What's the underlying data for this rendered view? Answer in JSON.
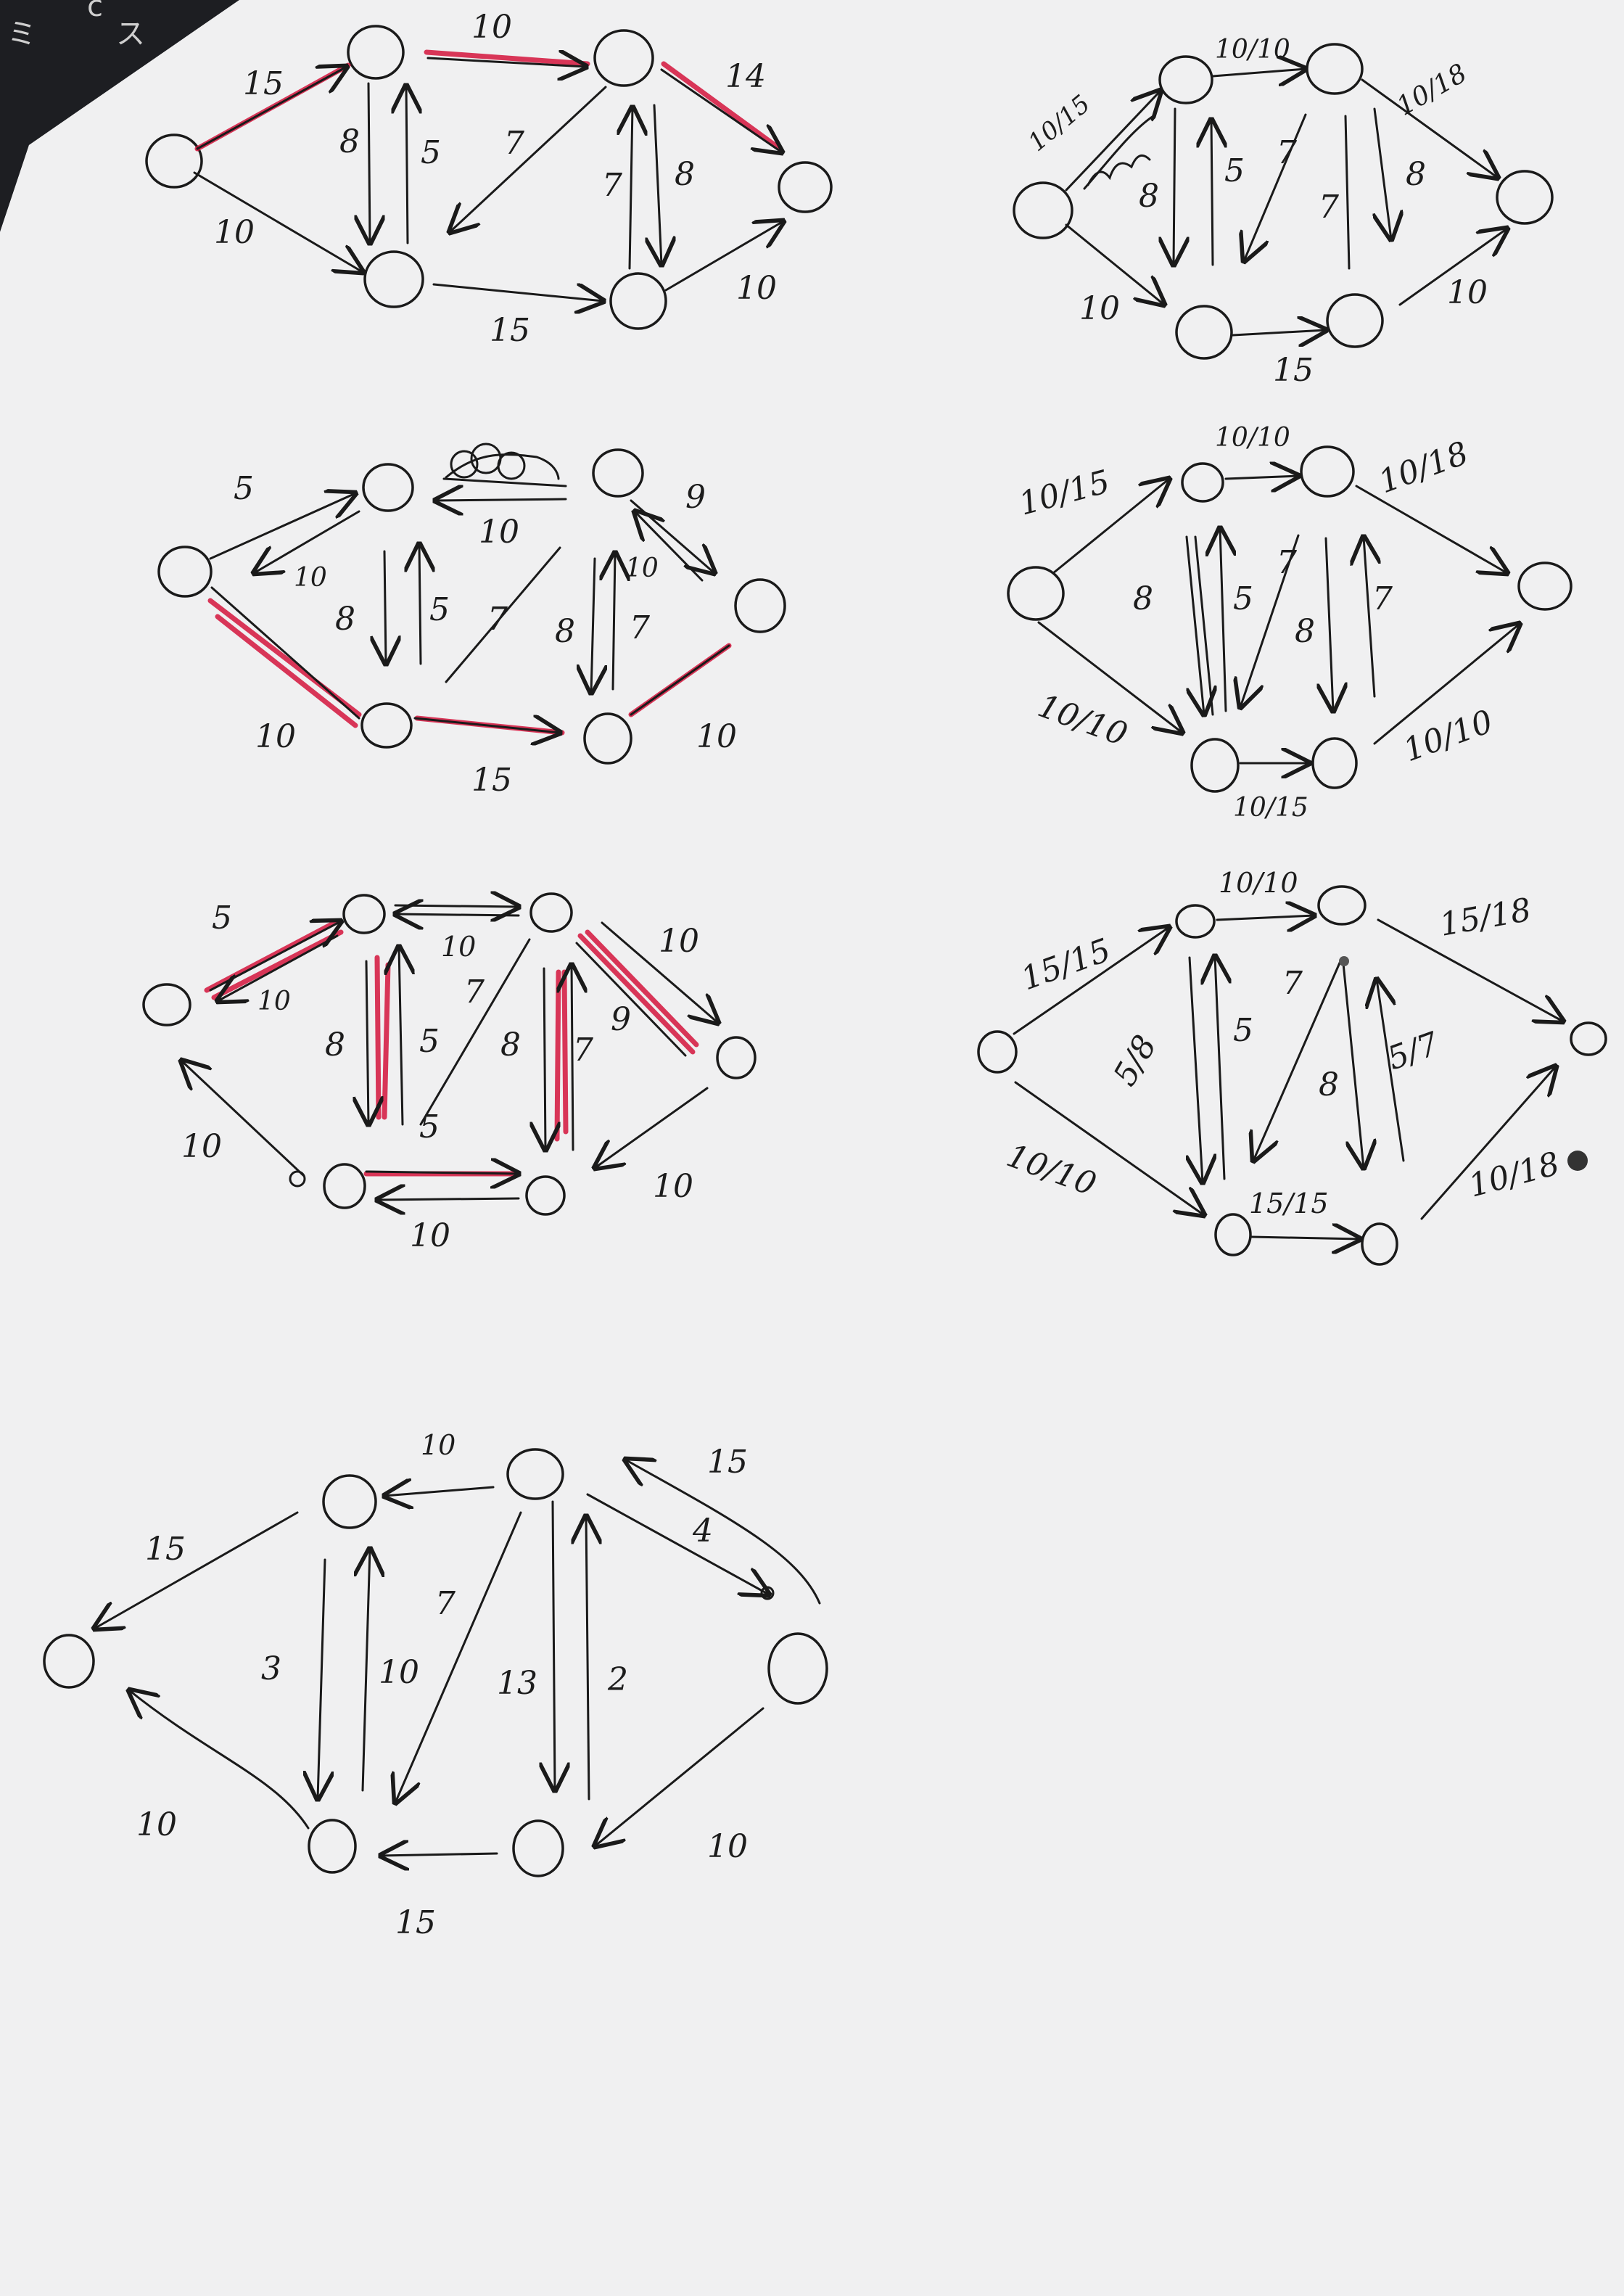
{
  "background_corner": {
    "glyphs": [
      "c",
      "ミ",
      "ス"
    ]
  },
  "diagrams": [
    {
      "id": "d1",
      "labels": [
        "15",
        "10",
        "14",
        "8",
        "5",
        "7",
        "7",
        "8",
        "10",
        "15",
        "10"
      ]
    },
    {
      "id": "d2",
      "labels": [
        "10/15",
        "10/10",
        "10/18",
        "8",
        "5",
        "7",
        "7",
        "8",
        "10",
        "15",
        "10"
      ]
    },
    {
      "id": "d3",
      "labels": [
        "5",
        "10",
        "9",
        "10",
        "8",
        "5",
        "7",
        "10",
        "8",
        "7",
        "10",
        "15",
        "10"
      ]
    },
    {
      "id": "d4",
      "labels": [
        "10/15",
        "10/10",
        "10/18",
        "8",
        "5",
        "7",
        "8",
        "7",
        "10/10",
        "10/15",
        "10/10"
      ]
    },
    {
      "id": "d5",
      "labels": [
        "5",
        "10",
        "10",
        "10",
        "8",
        "5",
        "7",
        "8",
        "7",
        "9",
        "5",
        "10",
        "10",
        "10"
      ]
    },
    {
      "id": "d6",
      "labels": [
        "15/15",
        "10/10",
        "15/18",
        "5/8",
        "5",
        "7",
        "8",
        "5/7",
        "10/10",
        "15/15",
        "10/18"
      ]
    },
    {
      "id": "d7",
      "labels": [
        "10",
        "15",
        "15",
        "4",
        "3",
        "10",
        "7",
        "13",
        "2",
        "10",
        "15",
        "10"
      ]
    }
  ]
}
